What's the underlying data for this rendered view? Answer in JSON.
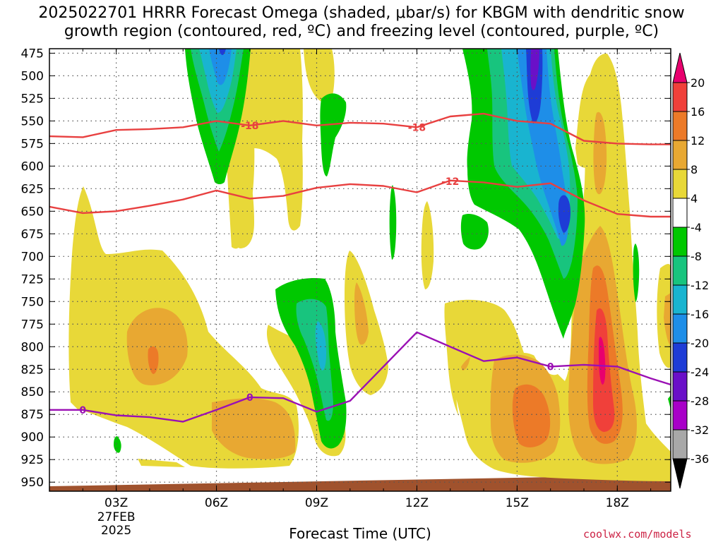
{
  "title": "2025022701 HRRR Forecast Omega (shaded, μbar/s) for KBGM with dendritic snow\ngrowth region (contoured, red, ºC) and freezing level (contoured, purple, ºC)",
  "credit": "coolwx.com/models",
  "chart_data": {
    "type": "heatmap",
    "xlabel": "Forecast Time (UTC)",
    "ylabel": "",
    "xlim": [
      0,
      18.6
    ],
    "ylim": [
      470,
      960
    ],
    "x_ticks": [
      {
        "x": 2,
        "label": "03Z"
      },
      {
        "x": 5,
        "label": "06Z"
      },
      {
        "x": 8,
        "label": "09Z"
      },
      {
        "x": 11,
        "label": "12Z"
      },
      {
        "x": 14,
        "label": "15Z"
      },
      {
        "x": 17,
        "label": "18Z"
      }
    ],
    "x_date_label": [
      "27FEB",
      "2025"
    ],
    "y_ticks": [
      475,
      500,
      525,
      550,
      575,
      600,
      625,
      650,
      675,
      700,
      725,
      750,
      775,
      800,
      825,
      850,
      875,
      900,
      925,
      950
    ],
    "grid": true,
    "colorbar": {
      "labels": [
        "20",
        "16",
        "12",
        "8",
        "4",
        "-4",
        "-8",
        "-12",
        "-16",
        "-20",
        "-24",
        "-28",
        "-32",
        "-36"
      ],
      "colors": [
        "#e8006e",
        "#f0403a",
        "#ec7a28",
        "#e8a832",
        "#e8d838",
        "#ffffff",
        "#00c800",
        "#18c47e",
        "#19b4d0",
        "#1e8ee8",
        "#1e3cd6",
        "#6a10c8",
        "#a800c8",
        "#a8a8a8",
        "#000000"
      ]
    },
    "contours": [
      {
        "label": "-18",
        "color": "#e84040",
        "points": [
          [
            0,
            567
          ],
          [
            1,
            568
          ],
          [
            2,
            560
          ],
          [
            3,
            559
          ],
          [
            4,
            557
          ],
          [
            5,
            550
          ],
          [
            6,
            555
          ],
          [
            7,
            550
          ],
          [
            8,
            555
          ],
          [
            9,
            552
          ],
          [
            10,
            553
          ],
          [
            11,
            557
          ],
          [
            12,
            545
          ],
          [
            13,
            542
          ],
          [
            14,
            550
          ],
          [
            15,
            553
          ],
          [
            16,
            572
          ],
          [
            17,
            575
          ],
          [
            18,
            576
          ],
          [
            18.6,
            576
          ]
        ],
        "label_positions": [
          [
            6,
            555
          ],
          [
            11,
            557
          ]
        ]
      },
      {
        "label": "-12",
        "color": "#e84040",
        "points": [
          [
            0,
            645
          ],
          [
            1,
            652
          ],
          [
            2,
            650
          ],
          [
            3,
            644
          ],
          [
            4,
            637
          ],
          [
            5,
            627
          ],
          [
            6,
            636
          ],
          [
            7,
            633
          ],
          [
            8,
            624
          ],
          [
            9,
            620
          ],
          [
            10,
            622
          ],
          [
            11,
            629
          ],
          [
            12,
            616
          ],
          [
            13,
            618
          ],
          [
            14,
            623
          ],
          [
            15,
            619
          ],
          [
            16,
            638
          ],
          [
            17,
            653
          ],
          [
            18,
            656
          ],
          [
            18.6,
            656
          ]
        ],
        "label_positions": [
          [
            12,
            617
          ]
        ]
      },
      {
        "label": "0",
        "color": "#9a10b4",
        "points": [
          [
            0,
            870
          ],
          [
            1,
            870
          ],
          [
            2,
            876
          ],
          [
            3,
            878
          ],
          [
            4,
            883
          ],
          [
            5,
            870
          ],
          [
            6,
            856
          ],
          [
            7,
            857
          ],
          [
            8,
            872
          ],
          [
            9,
            860
          ],
          [
            10,
            822
          ],
          [
            11,
            784
          ],
          [
            12,
            800
          ],
          [
            13,
            816
          ],
          [
            14,
            812
          ],
          [
            15,
            822
          ],
          [
            16,
            820
          ],
          [
            17,
            822
          ],
          [
            18,
            835
          ],
          [
            18.6,
            842
          ]
        ],
        "label_positions": [
          [
            1,
            870
          ],
          [
            6,
            856
          ],
          [
            15,
            822
          ]
        ]
      }
    ]
  }
}
